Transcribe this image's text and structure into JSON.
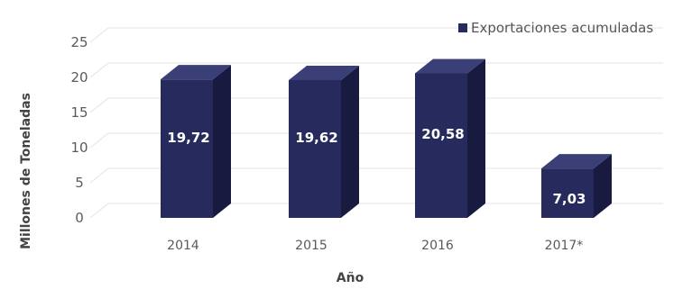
{
  "chart_data": {
    "type": "bar",
    "categories": [
      "2014",
      "2015",
      "2016",
      "2017*"
    ],
    "series": [
      {
        "name": "Exportaciones acumuladas",
        "values": [
          19.72,
          19.62,
          20.58,
          7.03
        ],
        "data_labels": [
          "19,72",
          "19,62",
          "20,58",
          "7,03"
        ]
      }
    ],
    "title": "",
    "xlabel": "Año",
    "ylabel": "Millones de Toneladas",
    "ylim": [
      0,
      25
    ],
    "yticks": [
      0,
      5,
      10,
      15,
      20,
      25
    ],
    "grid": true,
    "legend_position": "top-right",
    "style_3d": true,
    "colors": {
      "bar_front": "#262a5c",
      "bar_side": "#181b3f",
      "bar_top": "#3a3f78"
    }
  }
}
